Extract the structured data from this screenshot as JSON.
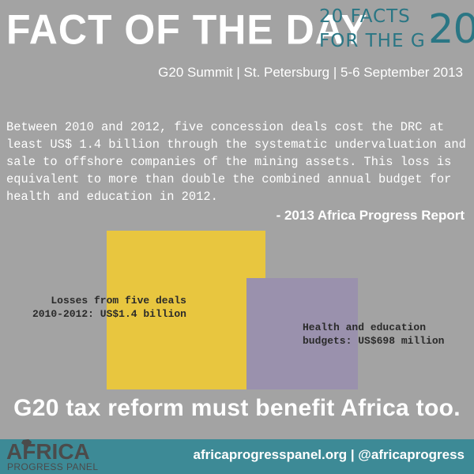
{
  "header": {
    "title": "FACT OF THE DAY",
    "tagline_line1": "20 FACTS",
    "tagline_line2": "FOR THE G",
    "tagline_big": "20",
    "subtitle": "G20 Summit | St. Petersburg | 5-6 September 2013"
  },
  "fact": {
    "text": "Between 2010 and 2012, five concession deals cost the DRC at least US$ 1.4 billion through the systematic undervaluation and sale to offshore companies of the mining assets. This loss is equivalent to more than double the combined annual budget for health and education in 2012.",
    "source": "- 2013 Africa Progress Report"
  },
  "comparison": {
    "loss_label": "Losses from five deals\n2010-2012: US$1.4 billion",
    "health_label": "Health and education\nbudgets: US$698 million",
    "colors": {
      "loss": "#e8c63f",
      "health": "#9a91ad"
    }
  },
  "headline": "G20 tax reform must benefit Africa too.",
  "footer": {
    "logo_word": "AFRICA",
    "logo_sub": "PROGRESS PANEL",
    "links": "africaprogresspanel.org | @africaprogress",
    "background": "#3d8a96"
  }
}
